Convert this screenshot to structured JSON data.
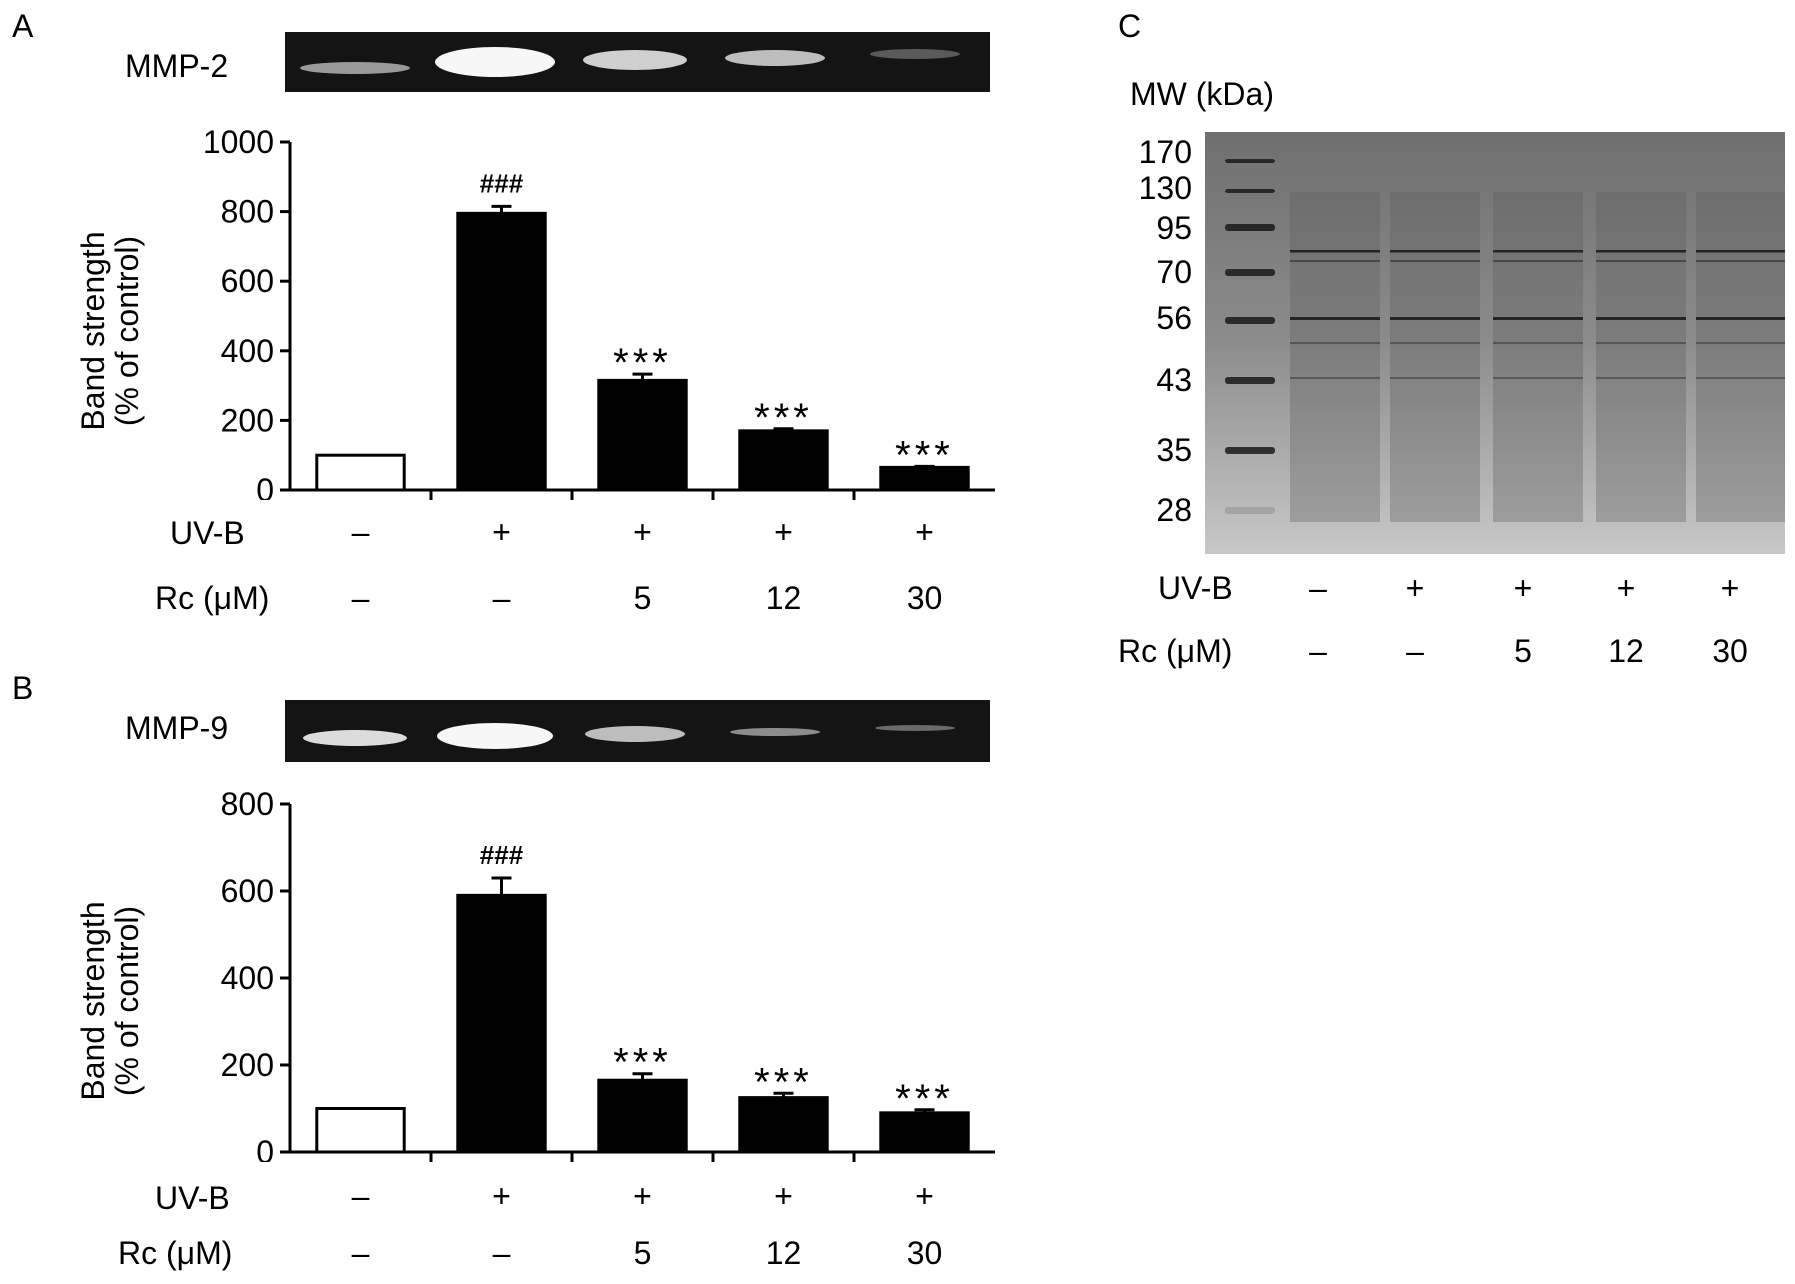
{
  "panel_letters": {
    "a": "A",
    "b": "B",
    "c": "C"
  },
  "conditions": {
    "uvb_label": "UV-B",
    "rc_label": "Rc (μM)",
    "uvb_values": [
      "–",
      "+",
      "+",
      "+",
      "+"
    ],
    "rc_values": [
      "–",
      "–",
      "5",
      "12",
      "30"
    ]
  },
  "gel_labels": {
    "a": "MMP-2",
    "b": "MMP-9"
  },
  "panel_c": {
    "mw_title": "MW (kDa)",
    "mw_markers": [
      "170",
      "130",
      "95",
      "70",
      "56",
      "43",
      "35",
      "28"
    ]
  },
  "colors": {
    "bar_fill": "#000000",
    "control_fill": "#ffffff",
    "gel_bg": "#111111",
    "band": "#f2f2f2",
    "stain_gel": "#8a8a8a"
  },
  "chart_data": [
    {
      "type": "bar",
      "panel": "A",
      "ylabel_line1": "Band strength",
      "ylabel_line2": "(% of control)",
      "ylim": [
        0,
        1000
      ],
      "yticks": [
        "0",
        "200",
        "400",
        "600",
        "800",
        "1000"
      ],
      "values": [
        100,
        795,
        315,
        170,
        65
      ],
      "errors": [
        0,
        20,
        18,
        6,
        3
      ],
      "fills": [
        "white",
        "black",
        "black",
        "black",
        "black"
      ],
      "annotations": [
        "",
        "###",
        "***",
        "***",
        "***"
      ]
    },
    {
      "type": "bar",
      "panel": "B",
      "ylabel_line1": "Band strength",
      "ylabel_line2": "(% of control)",
      "ylim": [
        0,
        800
      ],
      "yticks": [
        "0",
        "200",
        "400",
        "600",
        "800"
      ],
      "values": [
        100,
        590,
        165,
        125,
        90
      ],
      "errors": [
        0,
        40,
        15,
        10,
        7
      ],
      "fills": [
        "white",
        "black",
        "black",
        "black",
        "black"
      ],
      "annotations": [
        "",
        "###",
        "***",
        "***",
        "***"
      ]
    }
  ]
}
